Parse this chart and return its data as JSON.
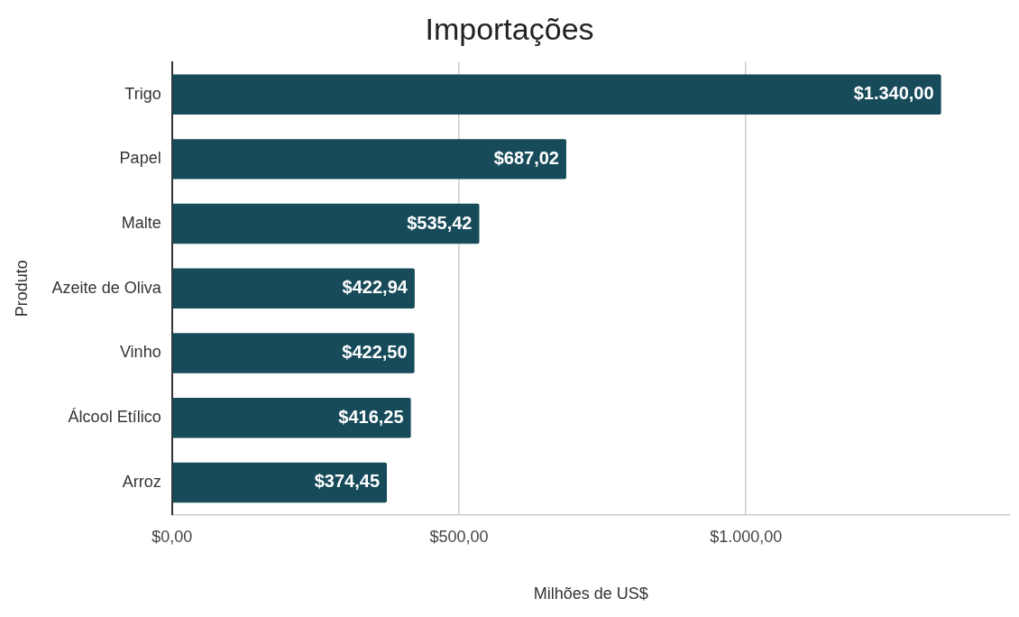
{
  "chart_data": {
    "type": "bar",
    "orientation": "horizontal",
    "title": "Importações",
    "xlabel": "Milhões de US$",
    "ylabel": "Produto",
    "categories": [
      "Trigo",
      "Papel",
      "Malte",
      "Azeite de Oliva",
      "Vinho",
      "Álcool Etílico",
      "Arroz"
    ],
    "values": [
      1340.0,
      687.02,
      535.42,
      422.94,
      422.5,
      416.25,
      374.45
    ],
    "value_labels": [
      "$1.340,00",
      "$687,02",
      "$535,42",
      "$422,94",
      "$422,50",
      "$416,25",
      "$374,45"
    ],
    "color": "#174b5a",
    "xlim": [
      0,
      1460
    ],
    "xticks": [
      {
        "value": 0,
        "label": "$0,00"
      },
      {
        "value": 500,
        "label": "$500,00"
      },
      {
        "value": 1000,
        "label": "$1.000,00"
      }
    ],
    "grid": "x",
    "legend": false
  }
}
